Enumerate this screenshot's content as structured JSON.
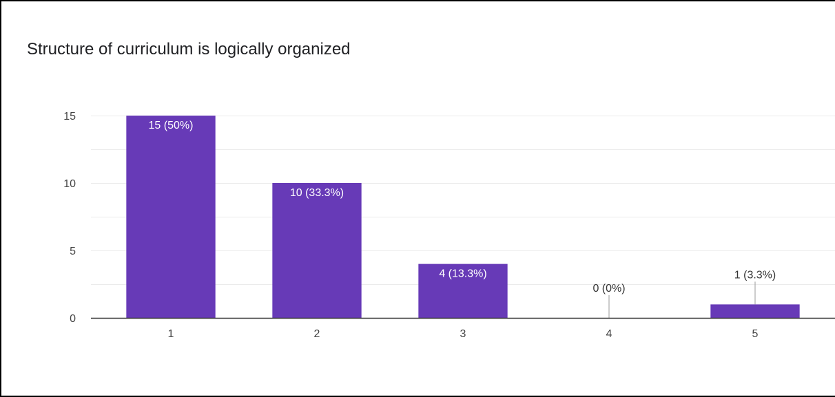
{
  "chart_data": {
    "type": "bar",
    "title": "Structure of curriculum is logically organized",
    "categories": [
      "1",
      "2",
      "3",
      "4",
      "5"
    ],
    "values": [
      15,
      10,
      4,
      0,
      1
    ],
    "data_labels": [
      "15 (50%)",
      "10 (33.3%)",
      "4 (13.3%)",
      "0 (0%)",
      "1 (3.3%)"
    ],
    "ylim": [
      0,
      15
    ],
    "yticks": [
      0,
      5,
      10,
      15
    ],
    "grid": true,
    "colors": {
      "bar": "#673ab7",
      "grid": "#ebebeb",
      "axis": "#333333",
      "label_inside": "#ffffff",
      "label_outside": "#333333",
      "leader": "#999999"
    }
  }
}
